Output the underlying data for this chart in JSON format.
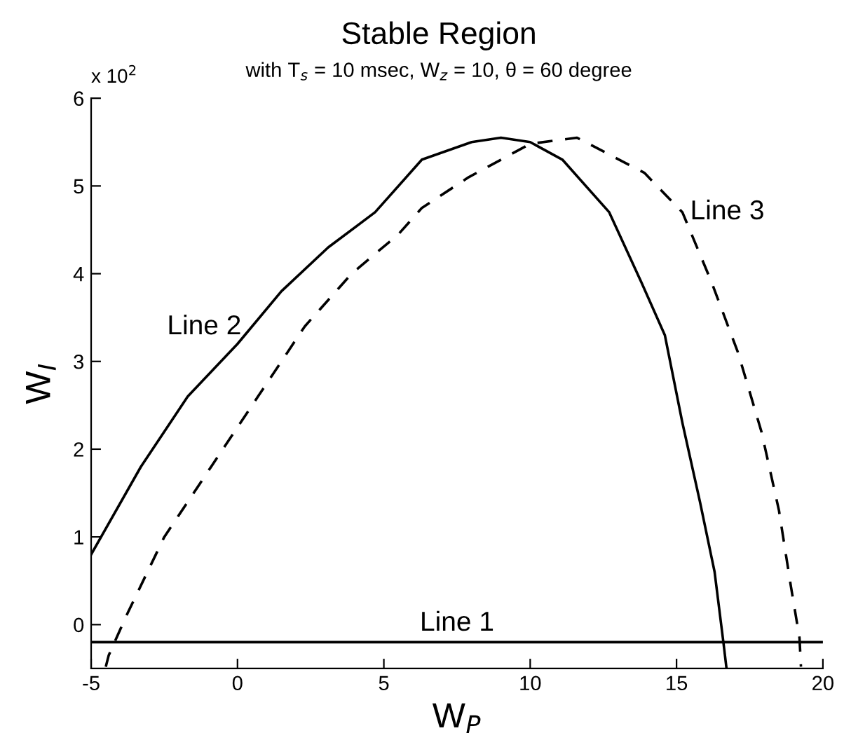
{
  "chart_data": {
    "type": "line",
    "title": "Stable Region",
    "subtitle": "with T$_{s}$ = 10 msec, W$_{z}$ = 10, θ = 60 degree",
    "xlabel": "W$_{P}$",
    "ylabel": "W$_{I}$",
    "xlim": [
      -5,
      20
    ],
    "ylim": [
      -0.5,
      6
    ],
    "xticks": [
      -5,
      0,
      5,
      10,
      15,
      20
    ],
    "yticks": [
      0,
      1,
      2,
      3,
      4,
      5,
      6
    ],
    "grid": false,
    "legend": false,
    "series": [
      {
        "name": "Line 1",
        "color": "#000000",
        "line_style": "solid",
        "x": [
          -5,
          20
        ],
        "values": [
          -0.2,
          -0.2
        ]
      },
      {
        "name": "Line 2",
        "color": "#000000",
        "line_style": "solid",
        "x": [
          -5,
          -3.3,
          -1.7,
          0,
          1.5,
          3.1,
          4.7,
          6.3,
          8,
          9,
          10,
          11.1,
          12.7,
          13.8,
          14.6,
          15.2,
          15.8,
          16.3,
          16.6,
          16.7
        ],
        "values": [
          0.8,
          1.8,
          2.6,
          3.2,
          3.8,
          4.3,
          4.7,
          5.3,
          5.5,
          5.55,
          5.5,
          5.3,
          4.7,
          3.9,
          3.3,
          2.3,
          1.4,
          0.6,
          -0.2,
          -0.48
        ]
      },
      {
        "name": "Line 3",
        "color": "#000000",
        "line_style": "dashed",
        "x": [
          -4.5,
          -4.4,
          -3.8,
          -2.5,
          -0.9,
          0.7,
          2.3,
          3.9,
          5.5,
          6.3,
          7.9,
          10,
          11.6,
          13.9,
          15.2,
          16.2,
          17.1,
          17.9,
          18.5,
          18.9,
          19.2,
          19.25
        ],
        "values": [
          -0.48,
          -0.35,
          0.1,
          1,
          1.8,
          2.6,
          3.4,
          4,
          4.45,
          4.75,
          5.1,
          5.48,
          5.55,
          5.15,
          4.7,
          3.9,
          3.1,
          2.2,
          1.3,
          0.45,
          -0.15,
          -0.48
        ]
      }
    ],
    "annotations": [
      "x 10$^{2}$"
    ]
  }
}
